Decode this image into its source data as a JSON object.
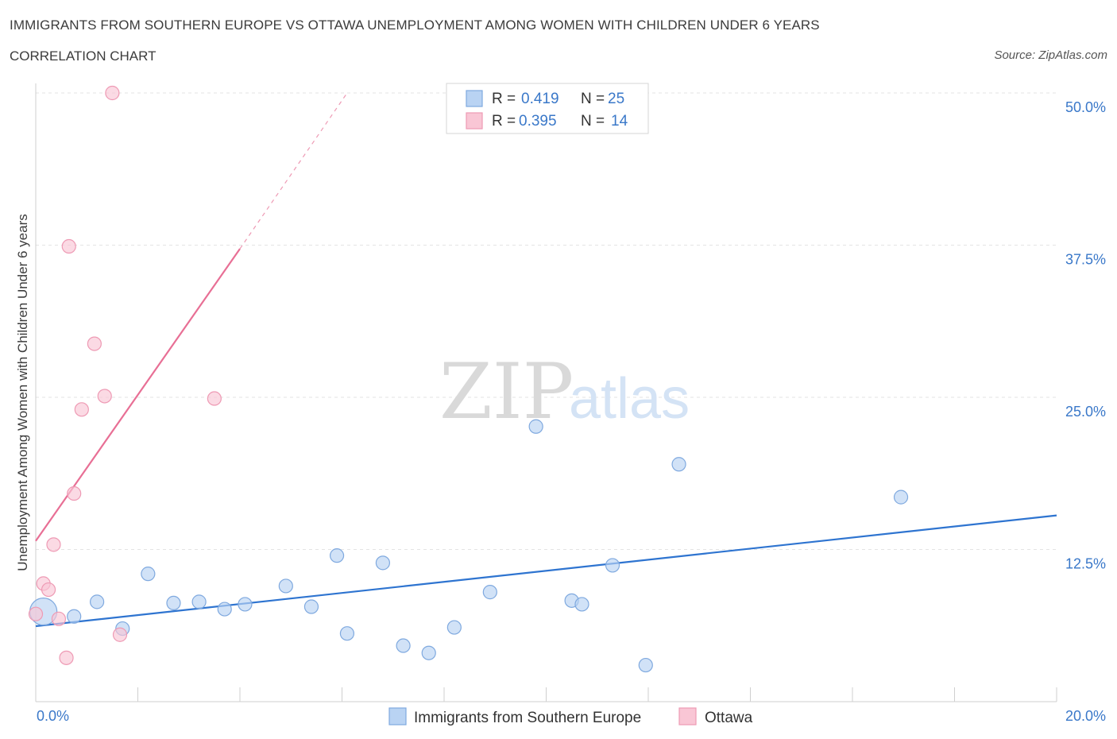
{
  "title": "IMMIGRANTS FROM SOUTHERN EUROPE VS OTTAWA UNEMPLOYMENT AMONG WOMEN WITH CHILDREN UNDER 6 YEARS",
  "subtitle": "CORRELATION CHART",
  "source": "Source: ZipAtlas.com",
  "watermark": {
    "zip": "ZIP",
    "atlas": "atlas"
  },
  "legend": {
    "r_label": "R =",
    "n_label": "N =",
    "series": [
      {
        "r": "0.419",
        "n": "25",
        "color": "#b9d3f3",
        "border": "#7fa9df"
      },
      {
        "r": "0.395",
        "n": "14",
        "color": "#f9c6d5",
        "border": "#ee9ab4"
      }
    ]
  },
  "chart_data": {
    "type": "scatter",
    "title": "IMMIGRANTS FROM SOUTHERN EUROPE VS OTTAWA UNEMPLOYMENT AMONG WOMEN WITH CHILDREN UNDER 6 YEARS",
    "subtitle": "CORRELATION CHART",
    "xlabel": "",
    "ylabel": "Unemployment Among Women with Children Under 6 years",
    "xlim": [
      0,
      20
    ],
    "ylim": [
      0,
      50
    ],
    "x_tick_labels": [
      "0.0%",
      "20.0%"
    ],
    "y_tick_labels": [
      "12.5%",
      "25.0%",
      "37.5%",
      "50.0%"
    ],
    "y_ticks": [
      12.5,
      25,
      37.5,
      50
    ],
    "grid": true,
    "legend_position": "bottom-center",
    "series": [
      {
        "name": "Immigrants from Southern Europe",
        "color": "#b9d3f3",
        "border": "#7fa9df",
        "line_color": "#2e74d0",
        "trend": {
          "x": [
            0,
            20
          ],
          "y": [
            6.2,
            15.3
          ]
        },
        "points": [
          {
            "x": 0.15,
            "y": 7.4,
            "size": "large"
          },
          {
            "x": 0.75,
            "y": 7.0
          },
          {
            "x": 1.2,
            "y": 8.2
          },
          {
            "x": 1.7,
            "y": 6.0
          },
          {
            "x": 2.2,
            "y": 10.5
          },
          {
            "x": 2.7,
            "y": 8.1
          },
          {
            "x": 3.2,
            "y": 8.2
          },
          {
            "x": 3.7,
            "y": 7.6
          },
          {
            "x": 4.1,
            "y": 8.0
          },
          {
            "x": 4.9,
            "y": 9.5
          },
          {
            "x": 5.4,
            "y": 7.8
          },
          {
            "x": 5.9,
            "y": 12.0
          },
          {
            "x": 6.1,
            "y": 5.6
          },
          {
            "x": 6.8,
            "y": 11.4
          },
          {
            "x": 7.2,
            "y": 4.6
          },
          {
            "x": 7.7,
            "y": 4.0
          },
          {
            "x": 8.2,
            "y": 6.1
          },
          {
            "x": 8.9,
            "y": 9.0
          },
          {
            "x": 9.8,
            "y": 22.6
          },
          {
            "x": 10.5,
            "y": 8.3
          },
          {
            "x": 10.7,
            "y": 8.0
          },
          {
            "x": 11.3,
            "y": 11.2
          },
          {
            "x": 11.95,
            "y": 3.0
          },
          {
            "x": 12.6,
            "y": 19.5
          },
          {
            "x": 16.95,
            "y": 16.8
          }
        ]
      },
      {
        "name": "Ottawa",
        "color": "#f9c6d5",
        "border": "#ee9ab4",
        "line_color": "#e86f95",
        "trend": {
          "x": [
            0,
            4.0
          ],
          "y": [
            13.2,
            37.2
          ]
        },
        "trend_extension": {
          "x": [
            4.0,
            6.1
          ],
          "y": [
            37.2,
            50.0
          ]
        },
        "points": [
          {
            "x": 0.0,
            "y": 7.2
          },
          {
            "x": 0.15,
            "y": 9.7
          },
          {
            "x": 0.25,
            "y": 9.2
          },
          {
            "x": 0.45,
            "y": 6.8
          },
          {
            "x": 0.6,
            "y": 3.6
          },
          {
            "x": 0.65,
            "y": 37.4
          },
          {
            "x": 0.75,
            "y": 17.1
          },
          {
            "x": 0.35,
            "y": 12.9
          },
          {
            "x": 0.9,
            "y": 24.0
          },
          {
            "x": 1.15,
            "y": 29.4
          },
          {
            "x": 1.35,
            "y": 25.1
          },
          {
            "x": 1.65,
            "y": 5.5
          },
          {
            "x": 1.5,
            "y": 50.0
          },
          {
            "x": 3.5,
            "y": 24.9
          }
        ]
      }
    ]
  }
}
